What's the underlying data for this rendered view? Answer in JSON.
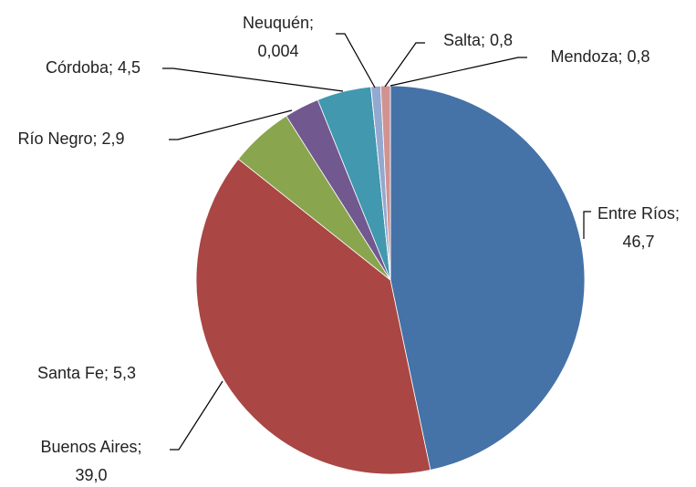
{
  "chart_data": {
    "type": "pie",
    "values": [
      46.7,
      39.0,
      5.3,
      2.9,
      4.5,
      0.004,
      0.8,
      0.8
    ],
    "value_labels": [
      "Entre Ríos;\n46,7",
      "Buenos Aires;\n39,0",
      "Santa Fe; 5,3",
      "Río Negro; 2,9",
      "Córdoba; 4,5",
      "Neuquén;\n0,004",
      "Salta; 0,8",
      "Mendoza; 0,8"
    ],
    "colors": [
      "#4572a7",
      "#aa4643",
      "#89a54e",
      "#71588f",
      "#4198af",
      "#db843d",
      "#93a9cf",
      "#d19392"
    ]
  }
}
